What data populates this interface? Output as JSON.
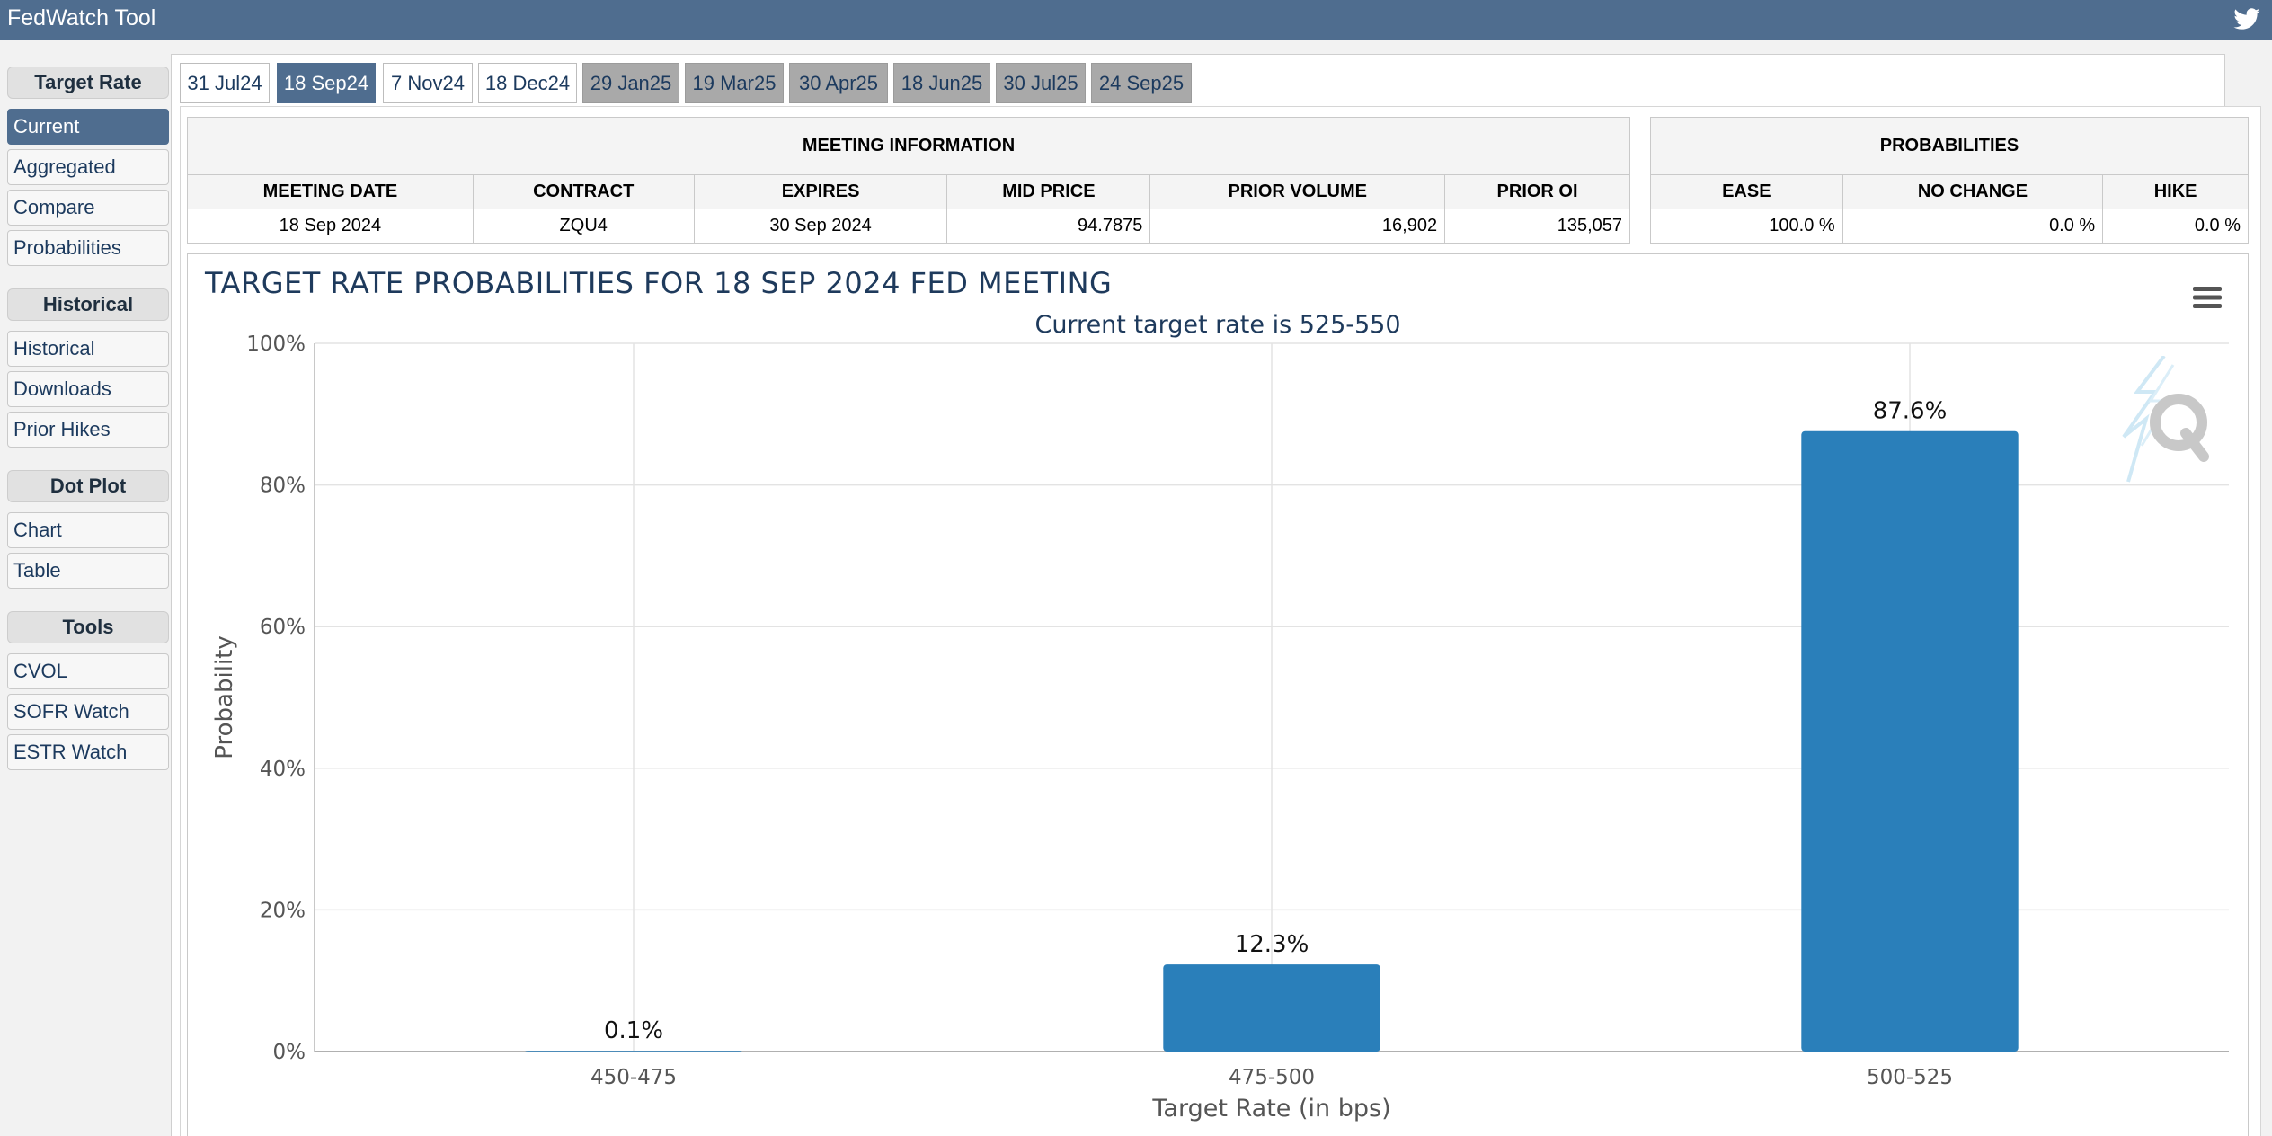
{
  "app": {
    "title": "FedWatch Tool"
  },
  "sidebar": {
    "sections": [
      {
        "title": "Target Rate",
        "items": [
          "Current",
          "Aggregated",
          "Compare",
          "Probabilities"
        ]
      },
      {
        "title": "Historical",
        "items": [
          "Historical",
          "Downloads",
          "Prior Hikes"
        ]
      },
      {
        "title": "Dot Plot",
        "items": [
          "Chart",
          "Table"
        ]
      },
      {
        "title": "Tools",
        "items": [
          "CVOL",
          "SOFR Watch",
          "ESTR Watch"
        ]
      }
    ],
    "active_item": "Current"
  },
  "tabs": [
    {
      "label": "31 Jul24",
      "state": "normal"
    },
    {
      "label": "18 Sep24",
      "state": "selected"
    },
    {
      "label": "7 Nov24",
      "state": "normal"
    },
    {
      "label": "18 Dec24",
      "state": "normal"
    },
    {
      "label": "29 Jan25",
      "state": "dim"
    },
    {
      "label": "19 Mar25",
      "state": "dim"
    },
    {
      "label": "30 Apr25",
      "state": "dim"
    },
    {
      "label": "18 Jun25",
      "state": "dim"
    },
    {
      "label": "30 Jul25",
      "state": "dim"
    },
    {
      "label": "24 Sep25",
      "state": "dim"
    }
  ],
  "meeting_info": {
    "header": "MEETING INFORMATION",
    "columns": [
      "MEETING DATE",
      "CONTRACT",
      "EXPIRES",
      "MID PRICE",
      "PRIOR VOLUME",
      "PRIOR OI"
    ],
    "row": [
      "18 Sep 2024",
      "ZQU4",
      "30 Sep 2024",
      "94.7875",
      "16,902",
      "135,057"
    ]
  },
  "probabilities": {
    "header": "PROBABILITIES",
    "columns": [
      "EASE",
      "NO CHANGE",
      "HIKE"
    ],
    "row": [
      "100.0 %",
      "0.0 %",
      "0.0 %"
    ]
  },
  "chart_data": {
    "type": "bar",
    "title": "TARGET RATE PROBABILITIES FOR 18 SEP 2024 FED MEETING",
    "subtitle": "Current target rate is 525-550",
    "xlabel": "Target Rate (in bps)",
    "ylabel": "Probability",
    "categories": [
      "450-475",
      "475-500",
      "500-525"
    ],
    "values": [
      0.1,
      12.3,
      87.6
    ],
    "data_labels": [
      "0.1%",
      "12.3%",
      "87.6%"
    ],
    "ylim": [
      0,
      100
    ],
    "yticks": [
      "0%",
      "20%",
      "40%",
      "60%",
      "80%",
      "100%"
    ],
    "grid": true,
    "bar_color": "#2a7fba"
  },
  "colors": {
    "header_bg": "#4f6d8f",
    "accent": "#2a7fba"
  }
}
